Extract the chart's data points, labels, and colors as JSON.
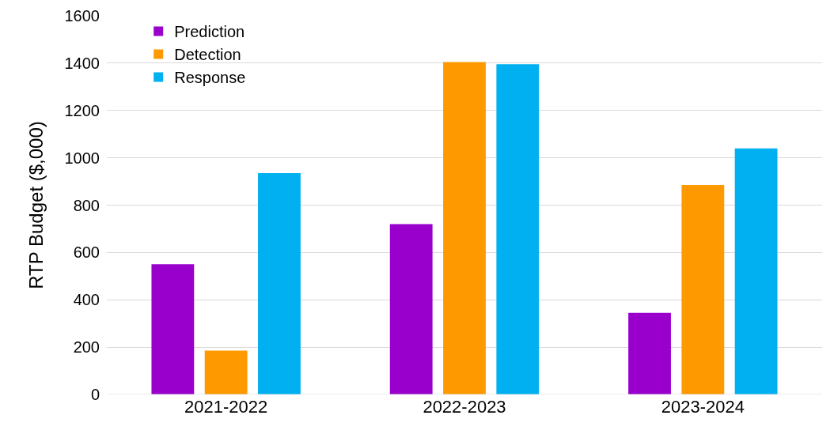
{
  "chart_data": {
    "type": "bar",
    "ylabel": "RTP Budget ($,000)",
    "categories": [
      "2021-2022",
      "2022-2023",
      "2023-2024"
    ],
    "series": [
      {
        "name": "Prediction",
        "color": "#9900cc",
        "values": [
          550,
          720,
          345
        ]
      },
      {
        "name": "Detection",
        "color": "#ff9900",
        "values": [
          185,
          1405,
          885
        ]
      },
      {
        "name": "Response",
        "color": "#00b0f0",
        "values": [
          935,
          1395,
          1040
        ]
      }
    ],
    "ylim": [
      0,
      1600
    ],
    "yticks": [
      0,
      200,
      400,
      600,
      800,
      1000,
      1200,
      1400,
      1600
    ],
    "grid": "y",
    "legend": "top left"
  }
}
